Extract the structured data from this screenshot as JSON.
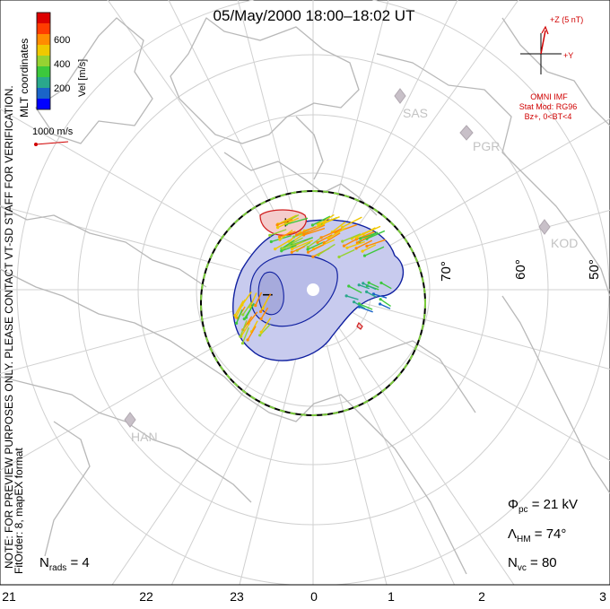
{
  "title": "05/May/2000 18:00–18:02 UT",
  "coordinates_label": "MLT coordinates",
  "disclaimer": "NOTE: FOR PREVIEW PURPOSES ONLY. PLEASE CONTACT VT-SD STAFF FOR VERIFICATION.",
  "fit_info": "FitOrder: 8, mapEX format",
  "colorbar": {
    "label": "Vel [m/s]",
    "ticks": [
      "600",
      "400",
      "200"
    ],
    "colors": [
      "#0000ff",
      "#1a64c8",
      "#2aa88c",
      "#3cc83c",
      "#96d232",
      "#f0c800",
      "#ff8c00",
      "#ff3c00",
      "#dc0000"
    ]
  },
  "reference_vector": "1000 m/s",
  "mlt_labels": [
    "21",
    "22",
    "23",
    "0",
    "1",
    "2",
    "3"
  ],
  "lat_labels": [
    "70°",
    "60°",
    "50°"
  ],
  "radar_sites": [
    "SAS",
    "PGR",
    "KOD",
    "HAN"
  ],
  "imf": {
    "z_label": "+Z (5 nT)",
    "y_label": "+Y",
    "source": "OMNI IMF",
    "model": "Stat Mod: RG96",
    "condition": "Bz+, 0<BT<4"
  },
  "stats": {
    "phi_pc": "Φpc  =  21  kV",
    "lambda_hm": "ΛHM  =  74°",
    "n_vc": "Nvc  =  80",
    "n_rads": "Nrads  =  4"
  },
  "stat_parts": {
    "phi_sym": "Φ",
    "phi_sub": "pc",
    "phi_val": "=  21  kV",
    "lam_sym": "Λ",
    "lam_sub": "HM",
    "lam_val": "=  74°",
    "nvc_sym": "N",
    "nvc_sub": "vc",
    "nvc_val": "=  80",
    "nr_sym": "N",
    "nr_sub": "rads",
    "nr_val": "=  4"
  },
  "potential_markers": {
    "max": "+",
    "min": "−"
  },
  "colors": {
    "positive_contour": "#d02020",
    "negative_contour": "#1020a0",
    "negative_fill": "#c8cbee",
    "positive_fill": "#f4cccc",
    "grid": "#d0d0d0",
    "coast": "#b8b8b8",
    "imf": "#d00000"
  }
}
